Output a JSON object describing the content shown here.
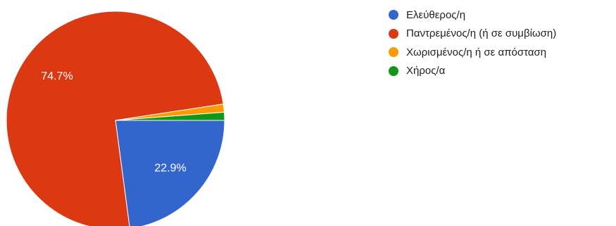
{
  "chart_data": {
    "type": "pie",
    "title": "",
    "categories": [
      "Ελεύθερος/η",
      "Παντρεμένος/η (ή σε συμβίωση)",
      "Χωρισμένος/η ή σε απόσταση",
      "Χήρος/α"
    ],
    "values": [
      22.9,
      74.7,
      1.2,
      1.2
    ],
    "colors": [
      "#3366cc",
      "#dc3912",
      "#ff9900",
      "#109618"
    ],
    "data_labels": [
      "22.9%",
      "74.7%",
      "",
      ""
    ],
    "legend_position": "right",
    "start_angle_deg": 90,
    "direction": "clockwise"
  },
  "legend": {
    "items": [
      {
        "label": "Ελεύθερος/η",
        "color": "#3366cc"
      },
      {
        "label": "Παντρεμένος/η (ή σε συμβίωση)",
        "color": "#dc3912"
      },
      {
        "label": "Χωρισμένος/η ή σε απόσταση",
        "color": "#ff9900"
      },
      {
        "label": "Χήρος/α",
        "color": "#109618"
      }
    ]
  }
}
